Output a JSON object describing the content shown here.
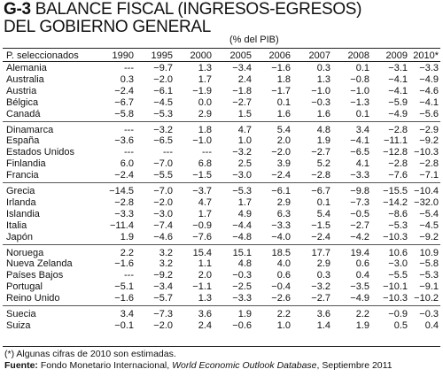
{
  "title": {
    "code": "G-3",
    "line1": "BALANCE FISCAL (INGRESOS-EGRESOS)",
    "line2": "DEL GOBIERNO GENERAL"
  },
  "unit": "(% del PIB)",
  "table": {
    "row_header": "P. seleccionados",
    "years": [
      "1990",
      "1995",
      "2000",
      "2005",
      "2006",
      "2007",
      "2008",
      "2009",
      "2010*"
    ],
    "groups": [
      [
        {
          "country": "Alemania",
          "values": [
            "---",
            "−9.7",
            "1.3",
            "−3.4",
            "−1.6",
            "0.3",
            "0.1",
            "−3.1",
            "−3.3"
          ]
        },
        {
          "country": "Australia",
          "values": [
            "0.3",
            "−2.0",
            "1.7",
            "2.4",
            "1.8",
            "1.3",
            "−0.8",
            "−4.1",
            "−4.9"
          ]
        },
        {
          "country": "Austria",
          "values": [
            "−2.4",
            "−6.1",
            "−1.9",
            "−1.8",
            "−1.7",
            "−1.0",
            "−1.0",
            "−4.1",
            "−4.6"
          ]
        },
        {
          "country": "Bélgica",
          "values": [
            "−6.7",
            "−4.5",
            "0.0",
            "−2.7",
            "0.1",
            "−0.3",
            "−1.3",
            "−5.9",
            "−4.1"
          ]
        },
        {
          "country": "Canadá",
          "values": [
            "−5.8",
            "−5.3",
            "2.9",
            "1.5",
            "1.6",
            "1.6",
            "0.1",
            "−4.9",
            "−5.6"
          ]
        }
      ],
      [
        {
          "country": "Dinamarca",
          "values": [
            "---",
            "−3.2",
            "1.8",
            "4.7",
            "5.4",
            "4.8",
            "3.4",
            "−2.8",
            "−2.9"
          ]
        },
        {
          "country": "España",
          "values": [
            "−3.6",
            "−6.5",
            "−1.0",
            "1.0",
            "2.0",
            "1.9",
            "−4.1",
            "−11.1",
            "−9.2"
          ]
        },
        {
          "country": "Estados Unidos",
          "values": [
            "---",
            "---",
            "---",
            "−3.2",
            "−2.0",
            "−2.7",
            "−6.5",
            "−12.8",
            "−10.3"
          ]
        },
        {
          "country": "Finlandia",
          "values": [
            "6.0",
            "−7.0",
            "6.8",
            "2.5",
            "3.9",
            "5.2",
            "4.1",
            "−2.8",
            "−2.8"
          ]
        },
        {
          "country": "Francia",
          "values": [
            "−2.4",
            "−5.5",
            "−1.5",
            "−3.0",
            "−2.4",
            "−2.8",
            "−3.3",
            "−7.6",
            "−7.1"
          ]
        }
      ],
      [
        {
          "country": "Grecia",
          "values": [
            "−14.5",
            "−7.0",
            "−3.7",
            "−5.3",
            "−6.1",
            "−6.7",
            "−9.8",
            "−15.5",
            "−10.4"
          ]
        },
        {
          "country": "Irlanda",
          "values": [
            "−2.8",
            "−2.0",
            "4.7",
            "1.7",
            "2.9",
            "0.1",
            "−7.3",
            "−14.2",
            "−32.0"
          ]
        },
        {
          "country": "Islandia",
          "values": [
            "−3.3",
            "−3.0",
            "1.7",
            "4.9",
            "6.3",
            "5.4",
            "−0.5",
            "−8.6",
            "−5.4"
          ]
        },
        {
          "country": "Italia",
          "values": [
            "−11.4",
            "−7.4",
            "−0.9",
            "−4.4",
            "−3.3",
            "−1.5",
            "−2.7",
            "−5.3",
            "−4.5"
          ]
        },
        {
          "country": "Japón",
          "values": [
            "1.9",
            "−4.6",
            "−7.6",
            "−4.8",
            "−4.0",
            "−2.4",
            "−4.2",
            "−10.3",
            "−9.2"
          ]
        }
      ],
      [
        {
          "country": "Noruega",
          "values": [
            "2.2",
            "3.2",
            "15.4",
            "15.1",
            "18.5",
            "17.7",
            "19.4",
            "10.6",
            "10.9"
          ]
        },
        {
          "country": "Nueva Zelanda",
          "values": [
            "−1.6",
            "3.2",
            "1.1",
            "4.8",
            "4.0",
            "2.9",
            "0.6",
            "−3.0",
            "−5.8"
          ]
        },
        {
          "country": "Países Bajos",
          "values": [
            "---",
            "−9.2",
            "2.0",
            "−0.3",
            "0.6",
            "0.3",
            "0.4",
            "−5.5",
            "−5.3"
          ]
        },
        {
          "country": "Portugal",
          "values": [
            "−5.1",
            "−3.4",
            "−1.1",
            "−2.5",
            "−0.4",
            "−3.2",
            "−3.5",
            "−10.1",
            "−9.1"
          ]
        },
        {
          "country": "Reino Unido",
          "values": [
            "−1.6",
            "−5.7",
            "1.3",
            "−3.3",
            "−2.6",
            "−2.7",
            "−4.9",
            "−10.3",
            "−10.2"
          ]
        }
      ],
      [
        {
          "country": "Suecia",
          "values": [
            "3.4",
            "−7.3",
            "3.6",
            "1.9",
            "2.2",
            "3.6",
            "2.2",
            "−0.9",
            "−0.3"
          ]
        },
        {
          "country": "Suiza",
          "values": [
            "−0.1",
            "−2.0",
            "2.4",
            "−0.6",
            "1.0",
            "1.4",
            "1.9",
            "0.5",
            "0.4"
          ]
        }
      ]
    ]
  },
  "notes": {
    "footnote": "(*) Algunas cifras de 2010 son estimadas.",
    "source_label": "Fuente:",
    "source_text": "Fondo Monetario Internacional,",
    "source_italic": "World Economic Outlook Database",
    "source_tail": ", Septiembre 2011"
  }
}
